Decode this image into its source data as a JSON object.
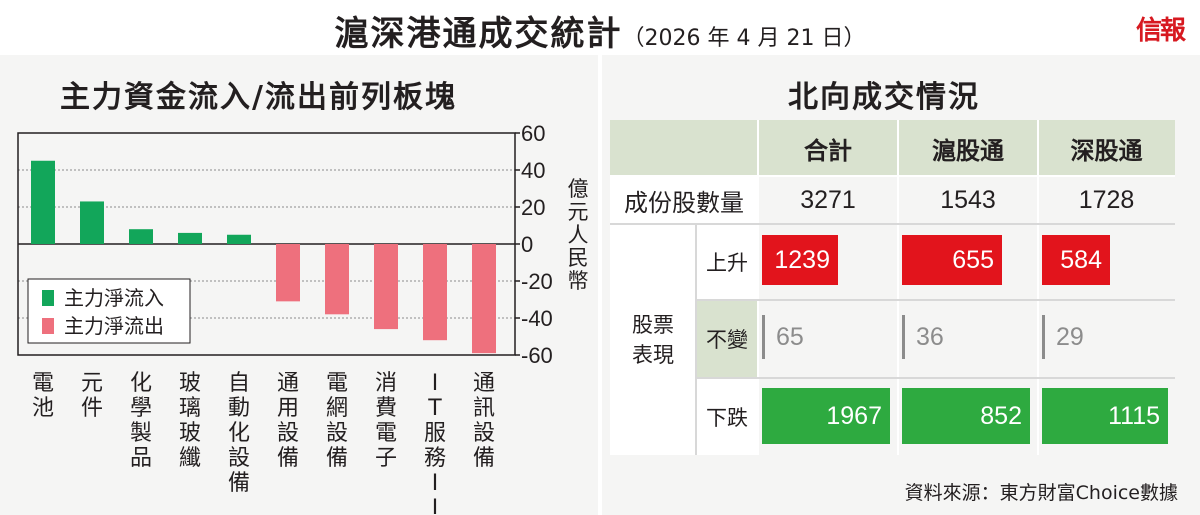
{
  "header": {
    "title": "滬深港通成交統計",
    "date": "（2026 年 4 月 21 日）",
    "logo": "信報"
  },
  "left": {
    "title": "主力資金流入/流出前列板塊"
  },
  "right": {
    "title": "北向成交情況"
  },
  "colors": {
    "inflow": "#12a65a",
    "outflow": "#ee707d",
    "up": "#e2141c",
    "down": "#2eaa40",
    "flat": "#8c8c8c",
    "header_bg": "#d9e2cf"
  },
  "chart_data": {
    "type": "bar",
    "categories": [
      "電池",
      "元件",
      "化學製品",
      "玻璃玻纖",
      "自動化設備",
      "通用設備",
      "電網設備",
      "消費電子",
      "IT服務II",
      "通訊設備"
    ],
    "series": [
      {
        "name": "主力淨流入",
        "values": [
          45,
          23,
          8,
          6,
          5,
          null,
          null,
          null,
          null,
          null
        ]
      },
      {
        "name": "主力淨流出",
        "values": [
          null,
          null,
          null,
          null,
          null,
          -31,
          -38,
          -46,
          -52,
          -59
        ]
      }
    ],
    "ylabel": "億元人民幣",
    "ylim": [
      -60,
      60
    ],
    "yticks": [
      60,
      40,
      20,
      0,
      -20,
      -40,
      -60
    ],
    "ytick_labels": [
      "60",
      "40",
      "20",
      "0",
      "-20",
      "-40",
      "-60"
    ],
    "axis_side": "right",
    "legend_position": "left",
    "grid": true
  },
  "table": {
    "columns": [
      "合計",
      "滬股通",
      "深股通"
    ],
    "constituents_label": "成份股數量",
    "constituents": [
      "3271",
      "1543",
      "1728"
    ],
    "group_label": "股票表現",
    "rows": [
      {
        "label": "上升",
        "values": [
          1239,
          655,
          584
        ]
      },
      {
        "label": "不變",
        "values": [
          65,
          36,
          29
        ]
      },
      {
        "label": "下跌",
        "values": [
          1967,
          852,
          1115
        ]
      }
    ]
  },
  "source": "資料來源：東方財富Choice數據"
}
